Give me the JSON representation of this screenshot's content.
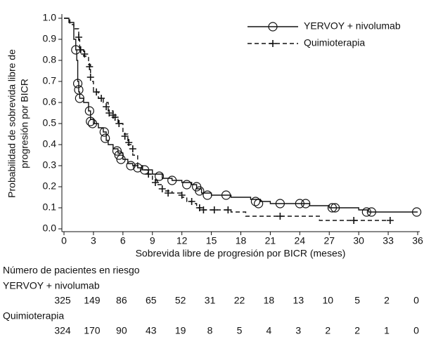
{
  "chart_data": {
    "type": "step",
    "ylabel": [
      "Probabilidad de sobrevida libre de",
      "progresión por BICR"
    ],
    "xlabel": "Sobrevida libre de progresión por BICR (meses)",
    "xlim": [
      0,
      36
    ],
    "ylim": [
      0,
      1
    ],
    "xticks": [
      0,
      3,
      6,
      9,
      12,
      15,
      18,
      21,
      24,
      27,
      30,
      33,
      36
    ],
    "yticks": [
      {
        "value": 0,
        "label": "0.0"
      },
      0.1,
      0.2,
      0.3,
      0.4,
      0.5,
      0.6,
      0.7,
      0.8,
      0.9,
      {
        "value": 1,
        "label": "1.0"
      }
    ],
    "legend": "upper right",
    "risk_table_title": "Número de pacientes en riesgo",
    "series": [
      {
        "name": "YERVOY + nivolumab",
        "color": "#111111",
        "marker": "circle",
        "linestyle": "solid",
        "x": [
          0,
          0.5,
          1,
          1.2,
          1.3,
          1.4,
          1.5,
          1.6,
          2,
          2.5,
          2.7,
          3,
          3.5,
          4,
          4.3,
          4.5,
          5,
          5.5,
          6,
          6.5,
          7,
          7.5,
          8,
          9,
          10,
          11,
          12,
          13,
          13.5,
          14,
          15,
          17,
          19,
          20,
          21,
          25,
          27,
          30,
          31,
          36
        ],
        "values": [
          1.0,
          0.98,
          0.9,
          0.85,
          0.8,
          0.7,
          0.65,
          0.62,
          0.6,
          0.56,
          0.52,
          0.5,
          0.48,
          0.46,
          0.42,
          0.4,
          0.38,
          0.36,
          0.33,
          0.31,
          0.3,
          0.29,
          0.28,
          0.26,
          0.24,
          0.23,
          0.22,
          0.21,
          0.19,
          0.17,
          0.16,
          0.15,
          0.14,
          0.13,
          0.12,
          0.11,
          0.1,
          0.09,
          0.08,
          0.08
        ],
        "censor_x": [
          1.2,
          1.4,
          1.5,
          1.6,
          2.6,
          2.7,
          2.9,
          4.1,
          4.2,
          5.4,
          5.6,
          5.8,
          6.8,
          7.5,
          8.2,
          9.7,
          11,
          12.5,
          13.5,
          13.8,
          14.6,
          16.5,
          19.5,
          19.8,
          22,
          24,
          24.6,
          27.3,
          27.6,
          30.8,
          31.3,
          35.9
        ],
        "censor_values": [
          0.85,
          0.69,
          0.66,
          0.62,
          0.56,
          0.51,
          0.5,
          0.46,
          0.43,
          0.37,
          0.35,
          0.33,
          0.3,
          0.29,
          0.28,
          0.25,
          0.23,
          0.21,
          0.2,
          0.18,
          0.16,
          0.16,
          0.13,
          0.12,
          0.12,
          0.12,
          0.12,
          0.1,
          0.1,
          0.08,
          0.08,
          0.08
        ],
        "at_risk": [
          325,
          149,
          86,
          65,
          52,
          31,
          22,
          18,
          13,
          10,
          5,
          2,
          0
        ]
      },
      {
        "name": "Quimioterapia",
        "color": "#111111",
        "marker": "plus",
        "linestyle": "dashed",
        "x": [
          0,
          0.6,
          1,
          1.5,
          1.6,
          2,
          2.5,
          2.7,
          3,
          3.5,
          4,
          4.5,
          5,
          5.5,
          6,
          6.5,
          7,
          7.5,
          8,
          8.5,
          9,
          9.5,
          10,
          11,
          12,
          12.5,
          13,
          13.5,
          14,
          16,
          17,
          18.5,
          26,
          33
        ],
        "values": [
          1.0,
          0.97,
          0.95,
          0.9,
          0.85,
          0.82,
          0.78,
          0.7,
          0.65,
          0.62,
          0.6,
          0.56,
          0.53,
          0.5,
          0.45,
          0.4,
          0.35,
          0.3,
          0.28,
          0.26,
          0.23,
          0.21,
          0.18,
          0.17,
          0.15,
          0.13,
          0.12,
          0.1,
          0.09,
          0.09,
          0.08,
          0.06,
          0.04,
          0.04
        ],
        "censor_x": [
          1.5,
          1.7,
          2.1,
          2.6,
          2.7,
          3.3,
          3.8,
          4.3,
          4.6,
          5,
          5.2,
          5.6,
          6.2,
          6.6,
          7,
          8.6,
          9.3,
          10,
          10.6,
          12,
          13,
          13.8,
          14.2,
          15.3,
          16.7,
          22,
          29.5,
          33.2
        ],
        "censor_values": [
          0.91,
          0.85,
          0.83,
          0.77,
          0.72,
          0.65,
          0.62,
          0.58,
          0.55,
          0.54,
          0.53,
          0.5,
          0.44,
          0.41,
          0.38,
          0.26,
          0.22,
          0.19,
          0.17,
          0.16,
          0.13,
          0.1,
          0.09,
          0.09,
          0.09,
          0.06,
          0.04,
          0.04
        ],
        "at_risk": [
          324,
          170,
          90,
          43,
          19,
          8,
          5,
          4,
          3,
          2,
          2,
          1,
          0
        ]
      }
    ]
  }
}
